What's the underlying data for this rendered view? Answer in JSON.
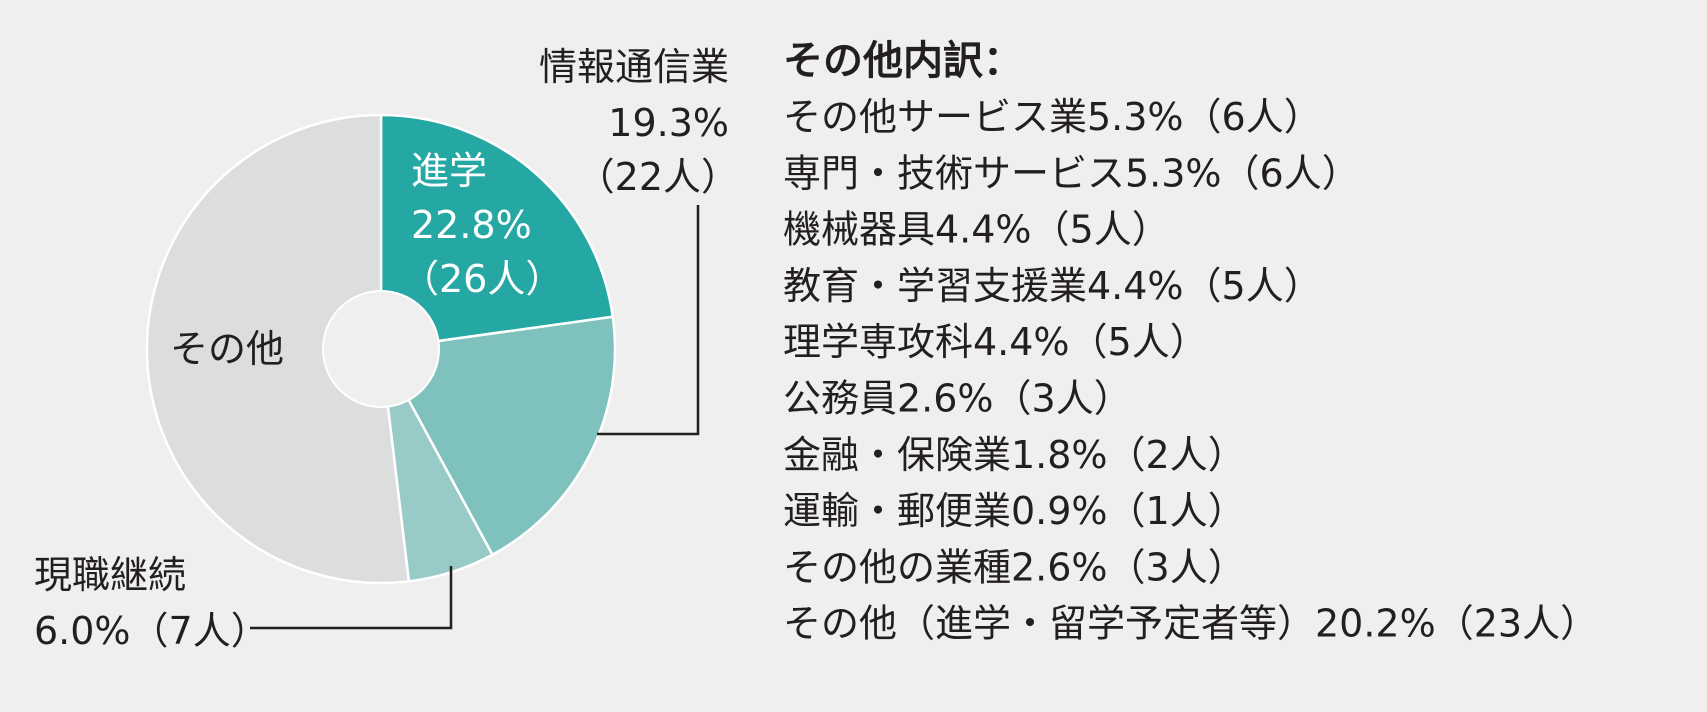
{
  "chart_data": {
    "type": "pie",
    "donut": true,
    "slices": [
      {
        "key": "shingaku",
        "label": "進学",
        "percent": 22.8,
        "count": "26人",
        "value_text": "22.8%",
        "count_text": "（26人）",
        "color": "#25a7a3"
      },
      {
        "key": "joho",
        "label": "情報通信業",
        "percent": 19.3,
        "count": "22人",
        "value_text": "19.3%",
        "count_text": "（22人）",
        "color": "#7fc2bd"
      },
      {
        "key": "genshoku",
        "label": "現職継続",
        "percent": 6.0,
        "count": "7人",
        "value_text": "6.0%（7人）",
        "color": "#98cbc7"
      },
      {
        "key": "sonota",
        "label": "その他",
        "percent": 51.9,
        "color": "#dcdddd"
      }
    ],
    "breakdown": {
      "title": "その他内訳：",
      "items": [
        "その他サービス業5.3%（6人）",
        "専門・技術サービス5.3%（6人）",
        "機械器具4.4%（5人）",
        "教育・学習支援業4.4%（5人）",
        "理学専攻科4.4%（5人）",
        "公務員2.6%（3人）",
        "金融・保険業1.8%（2人）",
        "運輸・郵便業0.9%（1人）",
        "その他の業種2.6%（3人）",
        "その他（進学・留学予定者等）20.2%（23人）"
      ]
    },
    "colors": {
      "background": "#efefef",
      "hole": "#efefef",
      "slice_border": "#ffffff",
      "leader": "#231f20",
      "text": "#231f20"
    }
  }
}
